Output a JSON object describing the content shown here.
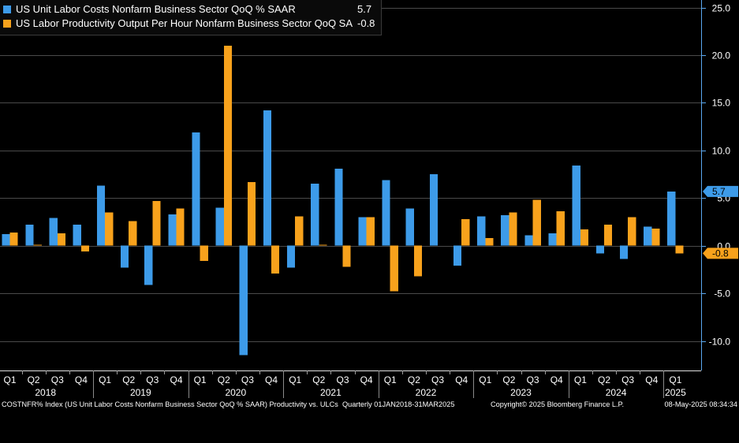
{
  "chart_data": {
    "type": "bar",
    "categories": [
      "Q1",
      "Q2",
      "Q3",
      "Q4",
      "Q1",
      "Q2",
      "Q3",
      "Q4",
      "Q1",
      "Q2",
      "Q3",
      "Q4",
      "Q1",
      "Q2",
      "Q3",
      "Q4",
      "Q1",
      "Q2",
      "Q3",
      "Q4",
      "Q1",
      "Q2",
      "Q3",
      "Q4",
      "Q1",
      "Q2",
      "Q3",
      "Q4",
      "Q1"
    ],
    "years": [
      "2018",
      "2019",
      "2020",
      "2021",
      "2022",
      "2023",
      "2024",
      "2025"
    ],
    "series": [
      {
        "name": "US Unit Labor Costs Nonfarm Business Sector QoQ % SAAR",
        "color": "#3d9be9",
        "last_value": "5.7",
        "values": [
          1.2,
          2.2,
          2.9,
          2.2,
          6.3,
          -2.3,
          -4.1,
          3.3,
          11.9,
          4.0,
          -11.5,
          14.2,
          -2.3,
          6.5,
          8.1,
          3.0,
          6.9,
          3.9,
          7.5,
          -2.1,
          3.1,
          3.2,
          1.1,
          1.3,
          8.4,
          -0.8,
          -1.4,
          2.0,
          5.7
        ]
      },
      {
        "name": "US Labor Productivity Output Per Hour Nonfarm Business Sector QoQ SA",
        "color": "#f8a21c",
        "last_value": "-0.8",
        "values": [
          1.4,
          0.1,
          1.3,
          -0.6,
          3.5,
          2.6,
          4.7,
          3.9,
          -1.6,
          21.0,
          6.7,
          -2.9,
          3.1,
          0.1,
          -2.2,
          3.0,
          -4.8,
          -3.2,
          0.0,
          2.8,
          0.8,
          3.5,
          4.8,
          3.6,
          1.7,
          2.2,
          3.0,
          1.8,
          -0.8
        ]
      }
    ],
    "y_ticks": [
      "25.0",
      "20.0",
      "15.0",
      "10.0",
      "5.0",
      "0.0",
      "-5.0",
      "-10.0"
    ],
    "ylim": [
      -13.1,
      25.8
    ],
    "y_axis_side": "right",
    "grid": {
      "horizontal": true,
      "vertical": false
    },
    "legend": "top-left"
  },
  "footer": {
    "source": "COSTNFR% Index (US Unit Labor Costs Nonfarm Business Sector QoQ % SAAR) Productivity vs. ULCs  Quarterly 01JAN2018-31MAR2025",
    "copyright": "Copyright© 2025 Bloomberg Finance L.P.",
    "timestamp": "08-May-2025 08:34:34"
  }
}
